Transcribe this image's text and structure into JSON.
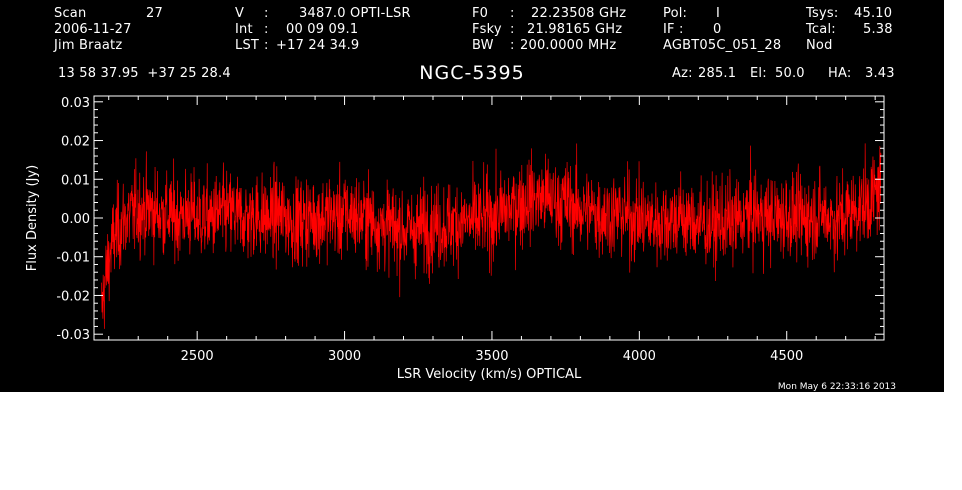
{
  "header": {
    "scan_label": "Scan",
    "scan_value": "27",
    "date": "2006-11-27",
    "observer": "Jim Braatz",
    "v_label": "V",
    "v_sep": ":",
    "v_value": "3487.0 OPTI-LSR",
    "int_label": "Int",
    "int_sep": ":",
    "int_value": "00 09 09.1",
    "lst_label": "LST",
    "lst_sep": ":",
    "lst_value": "+17 24 34.9",
    "f0_label": "F0",
    "f0_sep": ":",
    "f0_value": "22.23508 GHz",
    "fsky_label": "Fsky",
    "fsky_sep": ":",
    "fsky_value": "21.98165 GHz",
    "bw_label": "BW",
    "bw_sep": ":",
    "bw_value": "200.0000 MHz",
    "pol_label": "Pol:",
    "pol_value": "I",
    "if_label": "IF :",
    "if_value": "0",
    "project": "AGBT05C_051_28",
    "tsys_label": "Tsys:",
    "tsys_value": "45.10",
    "tcal_label": "Tcal:",
    "tcal_value": "5.38",
    "procedure": "Nod",
    "coords": "13 58 37.95  +37 25 28.4",
    "az_label": "Az:",
    "az_value": "285.1",
    "el_label": "El:",
    "el_value": "50.0",
    "ha_label": "HA:",
    "ha_value": "3.43"
  },
  "timestamp": "Mon May  6 22:33:16 2013",
  "colors": {
    "background": "#000000",
    "foreground": "#ffffff",
    "series": "#ff0000"
  },
  "chart_data": {
    "type": "line",
    "title": "NGC-5395",
    "xlabel": "LSR Velocity (km/s) OPTICAL",
    "ylabel": "Flux Density (Jy)",
    "xlim": [
      2150,
      4830
    ],
    "ylim": [
      -0.0315,
      0.0315
    ],
    "xticks": [
      2500,
      3000,
      3500,
      4000,
      4500
    ],
    "xtick_labels": [
      "2500",
      "3000",
      "3500",
      "4000",
      "4500"
    ],
    "yticks": [
      -0.03,
      -0.02,
      -0.01,
      0.0,
      0.01,
      0.02,
      0.03
    ],
    "ytick_labels": [
      "-0.03",
      "-0.02",
      "-0.01",
      "0.00",
      "0.01",
      "0.02",
      "0.03"
    ],
    "grid": false,
    "legend": "none",
    "series": [
      {
        "x": [
          2175,
          2185,
          2195,
          2205,
          2215,
          2225,
          2240,
          2260,
          2280,
          2300,
          2325,
          2350,
          2375,
          2400,
          2425,
          2450,
          2475,
          2500,
          2525,
          2550,
          2575,
          2600,
          2625,
          2650,
          2675,
          2700,
          2725,
          2750,
          2775,
          2800,
          2825,
          2850,
          2875,
          2900,
          2925,
          2950,
          2975,
          3000,
          3025,
          3050,
          3075,
          3100,
          3125,
          3150,
          3175,
          3200,
          3225,
          3250,
          3275,
          3300,
          3325,
          3350,
          3375,
          3400,
          3425,
          3450,
          3475,
          3500,
          3525,
          3550,
          3575,
          3600,
          3625,
          3650,
          3675,
          3700,
          3725,
          3750,
          3775,
          3800,
          3825,
          3850,
          3875,
          3900,
          3925,
          3950,
          3975,
          4000,
          4025,
          4050,
          4075,
          4100,
          4125,
          4150,
          4175,
          4200,
          4225,
          4250,
          4275,
          4300,
          4325,
          4350,
          4375,
          4400,
          4425,
          4450,
          4475,
          4500,
          4525,
          4550,
          4575,
          4600,
          4625,
          4650,
          4675,
          4700,
          4725,
          4750,
          4775,
          4790,
          4800,
          4810,
          4820
        ],
        "y": [
          -0.024,
          -0.018,
          -0.013,
          -0.009,
          -0.006,
          -0.004,
          -0.002,
          0.0,
          0.001,
          0.002,
          0.002,
          0.002,
          0.001,
          0.001,
          0.0,
          0.001,
          0.001,
          0.0,
          0.0,
          0.0,
          0.001,
          0.001,
          0.001,
          0.0,
          0.0,
          0.001,
          0.0,
          0.0,
          0.001,
          0.0,
          -0.001,
          -0.001,
          0.0,
          0.0,
          0.0,
          0.001,
          0.0,
          0.001,
          0.001,
          0.0,
          0.0,
          -0.001,
          -0.002,
          -0.002,
          -0.003,
          -0.003,
          -0.003,
          -0.003,
          -0.002,
          -0.002,
          -0.002,
          -0.002,
          -0.001,
          -0.001,
          -0.001,
          -0.001,
          0.0,
          0.0,
          0.001,
          0.002,
          0.003,
          0.004,
          0.005,
          0.005,
          0.005,
          0.005,
          0.004,
          0.004,
          0.003,
          0.002,
          0.002,
          0.001,
          0.001,
          0.001,
          0.001,
          0.001,
          0.0,
          0.0,
          -0.001,
          -0.001,
          -0.001,
          0.0,
          0.0,
          0.0,
          -0.001,
          -0.001,
          -0.002,
          -0.002,
          -0.001,
          -0.001,
          -0.001,
          0.0,
          0.001,
          0.001,
          0.0,
          0.0,
          0.0,
          0.001,
          0.0,
          0.0,
          0.0,
          0.001,
          0.001,
          0.0,
          -0.001,
          0.001,
          0.002,
          0.003,
          0.004,
          0.005,
          0.006,
          0.007,
          0.009
        ]
      }
    ],
    "noise_rms": 0.0055
  }
}
